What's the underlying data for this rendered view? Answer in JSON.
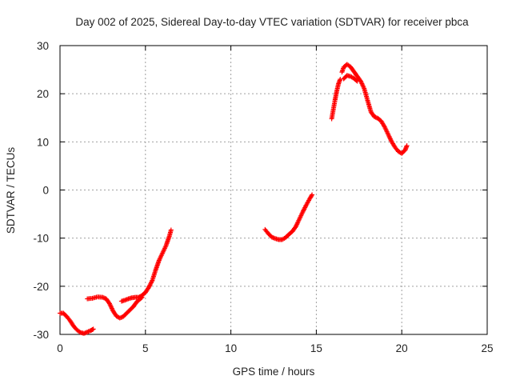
{
  "chart_data": {
    "type": "scatter",
    "title": "Day 002 of 2025, Sidereal Day-to-day VTEC variation (SDTVAR) for receiver pbca",
    "xlabel": "GPS time / hours",
    "ylabel": "SDTVAR / TECUs",
    "xlim": [
      0,
      25
    ],
    "ylim": [
      -30,
      30
    ],
    "xticks": [
      "0",
      "5",
      "10",
      "15",
      "20",
      "25"
    ],
    "yticks": [
      "30",
      "20",
      "10",
      "0",
      "-10",
      "-20",
      "-30"
    ],
    "grid": true,
    "color": "#ff0000",
    "marker": "plus",
    "series": [
      {
        "name": "SDTVAR",
        "segments": [
          [
            [
              0.0,
              -25.6
            ],
            [
              0.2,
              -25.6
            ],
            [
              0.4,
              -26.3
            ],
            [
              0.6,
              -27.2
            ],
            [
              0.8,
              -28.3
            ],
            [
              1.0,
              -29.1
            ],
            [
              1.2,
              -29.6
            ],
            [
              1.4,
              -29.8
            ],
            [
              1.6,
              -29.5
            ],
            [
              1.8,
              -29.2
            ],
            [
              1.95,
              -28.9
            ]
          ],
          [
            [
              1.6,
              -22.6
            ],
            [
              1.9,
              -22.5
            ],
            [
              2.2,
              -22.2
            ],
            [
              2.5,
              -22.3
            ],
            [
              2.7,
              -22.6
            ],
            [
              2.9,
              -23.6
            ],
            [
              3.1,
              -25.1
            ],
            [
              3.3,
              -26.2
            ],
            [
              3.5,
              -26.6
            ],
            [
              3.7,
              -26.3
            ],
            [
              3.9,
              -25.6
            ],
            [
              4.1,
              -24.9
            ],
            [
              4.3,
              -24.2
            ],
            [
              4.5,
              -23.2
            ],
            [
              4.7,
              -22.6
            ],
            [
              4.8,
              -22.3
            ]
          ],
          [
            [
              3.6,
              -23.1
            ],
            [
              3.8,
              -22.9
            ],
            [
              4.0,
              -22.6
            ],
            [
              4.2,
              -22.4
            ],
            [
              4.4,
              -22.3
            ],
            [
              4.6,
              -22.3
            ],
            [
              4.8,
              -21.9
            ],
            [
              5.0,
              -21.3
            ],
            [
              5.2,
              -20.2
            ],
            [
              5.4,
              -18.8
            ],
            [
              5.6,
              -16.6
            ],
            [
              5.8,
              -14.6
            ],
            [
              6.0,
              -13.1
            ],
            [
              6.2,
              -11.6
            ],
            [
              6.4,
              -9.6
            ],
            [
              6.5,
              -8.3
            ]
          ],
          [
            [
              12.0,
              -8.2
            ],
            [
              12.2,
              -9.1
            ],
            [
              12.4,
              -9.8
            ],
            [
              12.6,
              -10.1
            ],
            [
              12.8,
              -10.3
            ],
            [
              13.0,
              -10.3
            ],
            [
              13.2,
              -9.9
            ],
            [
              13.4,
              -9.2
            ],
            [
              13.6,
              -8.6
            ],
            [
              13.8,
              -7.6
            ],
            [
              14.0,
              -6.1
            ],
            [
              14.2,
              -4.6
            ],
            [
              14.4,
              -3.2
            ],
            [
              14.6,
              -1.9
            ],
            [
              14.75,
              -1.0
            ]
          ],
          [
            [
              15.9,
              14.8
            ],
            [
              16.0,
              16.8
            ],
            [
              16.1,
              18.8
            ],
            [
              16.2,
              20.6
            ],
            [
              16.3,
              22.1
            ],
            [
              16.4,
              23.0
            ]
          ],
          [
            [
              16.5,
              24.5
            ],
            [
              16.6,
              25.5
            ],
            [
              16.8,
              26.1
            ],
            [
              17.0,
              25.6
            ],
            [
              17.2,
              24.6
            ],
            [
              17.4,
              23.6
            ],
            [
              17.6,
              22.6
            ],
            [
              17.8,
              21.1
            ],
            [
              18.0,
              18.6
            ],
            [
              18.2,
              16.2
            ],
            [
              18.4,
              15.2
            ],
            [
              18.6,
              14.9
            ],
            [
              18.8,
              14.3
            ],
            [
              19.0,
              13.1
            ],
            [
              19.2,
              11.6
            ],
            [
              19.4,
              10.1
            ],
            [
              19.6,
              8.9
            ],
            [
              19.8,
              8.0
            ],
            [
              20.0,
              7.6
            ],
            [
              20.2,
              8.3
            ],
            [
              20.3,
              9.2
            ]
          ],
          [
            [
              16.6,
              23.1
            ],
            [
              16.8,
              23.8
            ],
            [
              17.0,
              23.6
            ],
            [
              17.2,
              23.2
            ],
            [
              17.4,
              22.6
            ]
          ]
        ]
      }
    ]
  }
}
